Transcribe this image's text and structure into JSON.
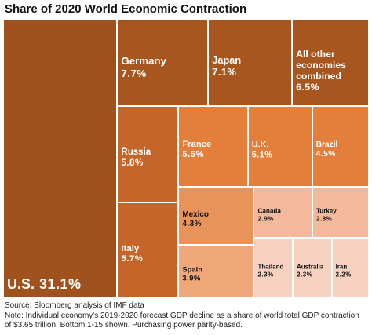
{
  "chart_data": {
    "type": "treemap",
    "title": "Share of 2020 World Economic Contraction",
    "categories": [
      "U.S.",
      "Germany",
      "Japan",
      "All other economies combined",
      "Russia",
      "Italy",
      "France",
      "U.K.",
      "Brazil",
      "Mexico",
      "Spain",
      "Canada",
      "Turkey",
      "Thailand",
      "Australia",
      "Iran"
    ],
    "values": [
      31.1,
      7.7,
      7.1,
      6.5,
      5.8,
      5.7,
      5.5,
      5.1,
      4.5,
      4.3,
      3.9,
      2.9,
      2.8,
      2.3,
      2.3,
      2.2
    ],
    "value_labels": [
      "31.1%",
      "7.7%",
      "7.1%",
      "6.5%",
      "5.8%",
      "5.7%",
      "5.5%",
      "5.1%",
      "4.5%",
      "4.3%",
      "3.9%",
      "2.9%",
      "2.8%",
      "2.3%",
      "2.3%",
      "2.2%"
    ],
    "colors": [
      "#a0521e",
      "#a8561f",
      "#a8561f",
      "#a8561f",
      "#c4652a",
      "#c4652a",
      "#e37f3a",
      "#e37f3a",
      "#e37f3a",
      "#e8935a",
      "#f0a77a",
      "#f3b99a",
      "#f3b99a",
      "#f7d2c0",
      "#f7d2c0",
      "#f7d2c0"
    ],
    "source": "Source: Bloomberg analysis of IMF data",
    "note": "Note: Individual economy's 2019-2020 forecast GDP decline as a share of world total GDP contraction of $3.65 trillion. Bottom 1-15 shown. Purchasing power parity-based."
  }
}
